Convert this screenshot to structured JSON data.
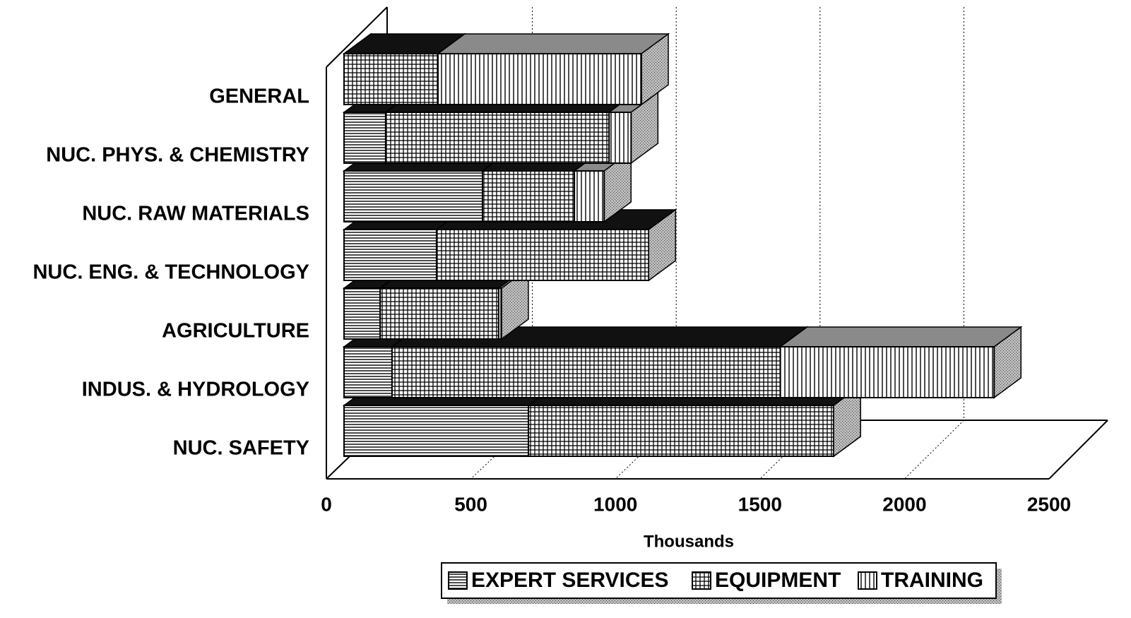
{
  "chart_data": {
    "type": "bar3d_stacked_horizontal",
    "xlabel": "Thousands",
    "categories": [
      "GENERAL",
      "NUC. PHYS. & CHEMISTRY",
      "NUC. RAW MATERIALS",
      "NUC. ENG. & TECHNOLOGY",
      "AGRICULTURE",
      "INDUS. & HYDROLOGY",
      "NUC. SAFETY"
    ],
    "series": [
      {
        "name": "EXPERT SERVICES",
        "color": "#111111",
        "pattern": "horizontal",
        "values": [
          0,
          144,
          479,
          320,
          125,
          166,
          638
        ]
      },
      {
        "name": "EQUIPMENT",
        "color": "#111111",
        "pattern": "grid",
        "values": [
          325,
          773,
          318,
          734,
          410,
          1343,
          1056
        ]
      },
      {
        "name": "TRAINING",
        "color": "#8a8a8a",
        "pattern": "vertical",
        "values": [
          704,
          76,
          103,
          0,
          10,
          740,
          0
        ]
      }
    ],
    "xlim": [
      0,
      2500
    ],
    "xticks": [
      0,
      500,
      1000,
      1500,
      2000,
      2500
    ],
    "grid": true
  }
}
